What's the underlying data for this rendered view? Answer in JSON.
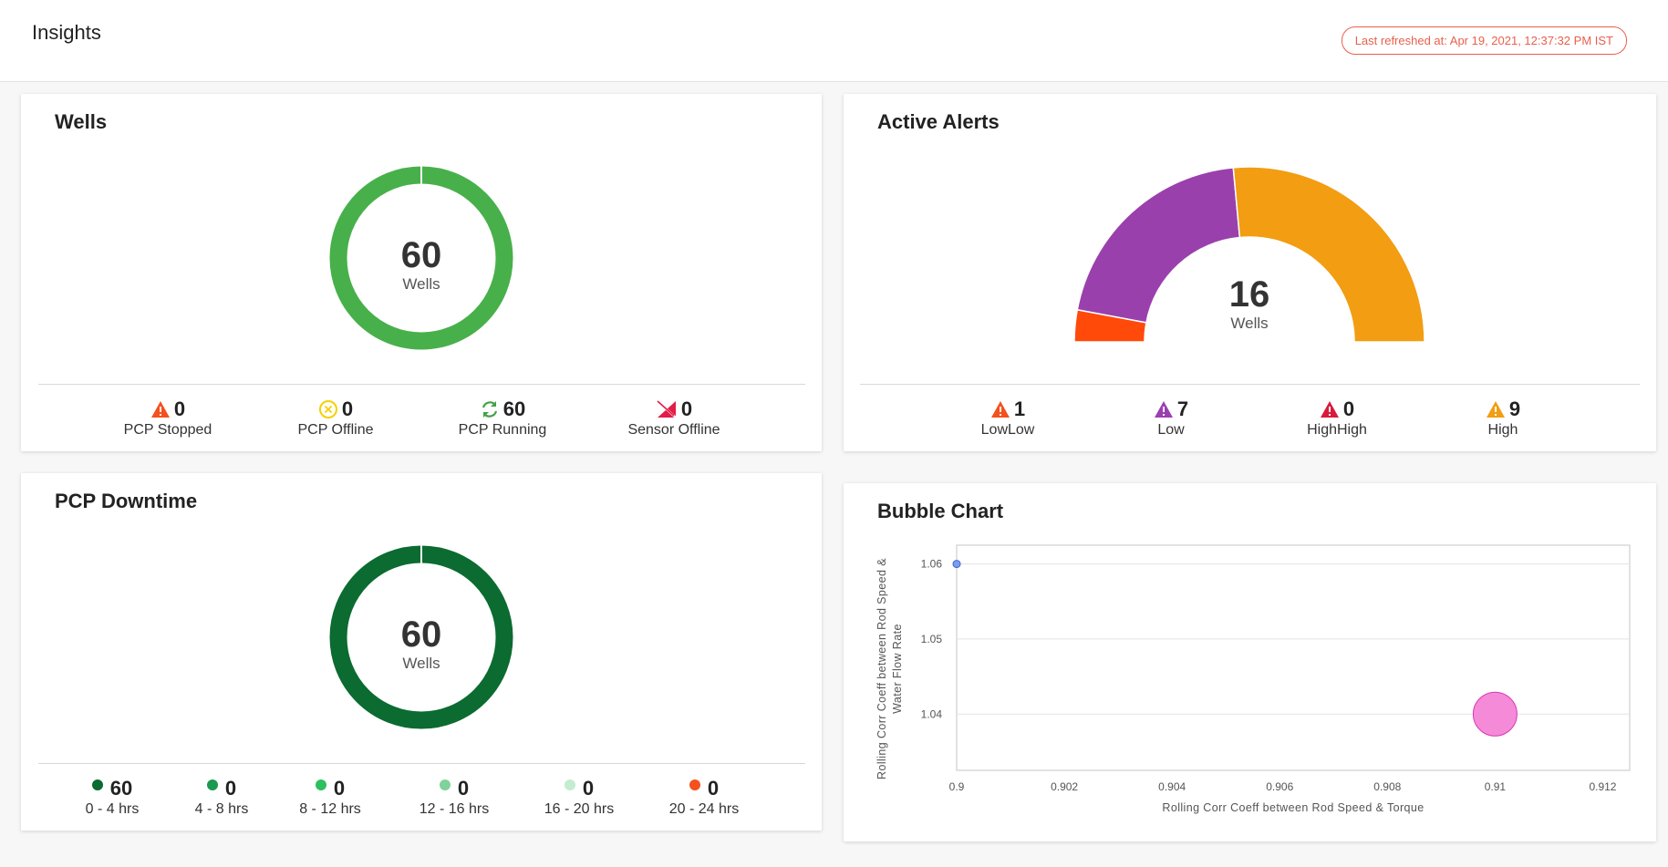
{
  "header": {
    "title": "Insights",
    "last_refreshed": "Last refreshed at: Apr 19, 2021, 12:37:32 PM IST"
  },
  "wells": {
    "title": "Wells",
    "total": "60",
    "total_label": "Wells",
    "stats": [
      {
        "value": "0",
        "label": "PCP Stopped",
        "icon": "warning-triangle-icon",
        "color": "#f4511e"
      },
      {
        "value": "0",
        "label": "PCP Offline",
        "icon": "offline-circle-icon",
        "color": "#f5d000"
      },
      {
        "value": "60",
        "label": "PCP Running",
        "icon": "refresh-arrows-icon",
        "color": "#43a047"
      },
      {
        "value": "0",
        "label": "Sensor Offline",
        "icon": "sensor-offline-icon",
        "color": "#e11d48"
      }
    ],
    "ring_color": "#48b04a"
  },
  "active_alerts": {
    "title": "Active Alerts",
    "total": "16",
    "total_label": "Wells",
    "stats": [
      {
        "value": "1",
        "label": "LowLow",
        "icon": "warning-triangle-icon",
        "color": "#f4511e"
      },
      {
        "value": "7",
        "label": "Low",
        "icon": "warning-triangle-icon",
        "color": "#9b3fb0"
      },
      {
        "value": "0",
        "label": "HighHigh",
        "icon": "warning-triangle-icon",
        "color": "#d81b3c"
      },
      {
        "value": "9",
        "label": "High",
        "icon": "warning-triangle-icon",
        "color": "#f29d12"
      }
    ]
  },
  "pcp_downtime": {
    "title": "PCP Downtime",
    "total": "60",
    "total_label": "Wells",
    "ring_color": "#0b6b30",
    "stats": [
      {
        "value": "60",
        "label": "0 - 4 hrs",
        "color": "#0b6b30"
      },
      {
        "value": "0",
        "label": "4 - 8 hrs",
        "color": "#1a9950"
      },
      {
        "value": "0",
        "label": "8 - 12 hrs",
        "color": "#2ebf5e"
      },
      {
        "value": "0",
        "label": "12 - 16 hrs",
        "color": "#7fd29a"
      },
      {
        "value": "0",
        "label": "16 - 20 hrs",
        "color": "#c4ecd0"
      },
      {
        "value": "0",
        "label": "20 - 24 hrs",
        "color": "#f4511e"
      }
    ]
  },
  "bubble": {
    "title": "Bubble Chart"
  },
  "chart_data": [
    {
      "type": "pie",
      "variant": "donut",
      "categories": [
        "PCP Running"
      ],
      "values": [
        60
      ],
      "center_text": "60"
    },
    {
      "type": "pie",
      "variant": "semi-donut",
      "categories": [
        "LowLow",
        "Low",
        "HighHigh",
        "High"
      ],
      "values": [
        1,
        7,
        0,
        9
      ],
      "colors": [
        "#ff4a0a",
        "#9a40ad",
        "#d81b3c",
        "#f29d12"
      ],
      "center_text": "16"
    },
    {
      "type": "pie",
      "variant": "donut",
      "categories": [
        "0 - 4 hrs",
        "4 - 8 hrs",
        "8 - 12 hrs",
        "12 - 16 hrs",
        "16 - 20 hrs",
        "20 - 24 hrs"
      ],
      "values": [
        60,
        0,
        0,
        0,
        0,
        0
      ],
      "center_text": "60"
    },
    {
      "type": "scatter",
      "variant": "bubble",
      "xlabel": "Rolling Corr Coeff between Rod Speed & Torque",
      "ylabel": "Rolling Corr Coeff between Rod Speed & Water Flow Rate",
      "xlim": [
        0.9,
        0.9125
      ],
      "ylim": [
        1.0325,
        1.0625
      ],
      "xticks": [
        "0.9",
        "0.902",
        "0.904",
        "0.906",
        "0.908",
        "0.91",
        "0.912"
      ],
      "yticks": [
        "1.04",
        "1.05",
        "1.06"
      ],
      "grid": true,
      "series": [
        {
          "points": [
            {
              "x": 0.9,
              "y": 1.06,
              "size": 1,
              "color": "#7c9cf0"
            },
            {
              "x": 0.91,
              "y": 1.04,
              "size": 10,
              "color": "#f48ad8"
            }
          ]
        }
      ]
    }
  ]
}
